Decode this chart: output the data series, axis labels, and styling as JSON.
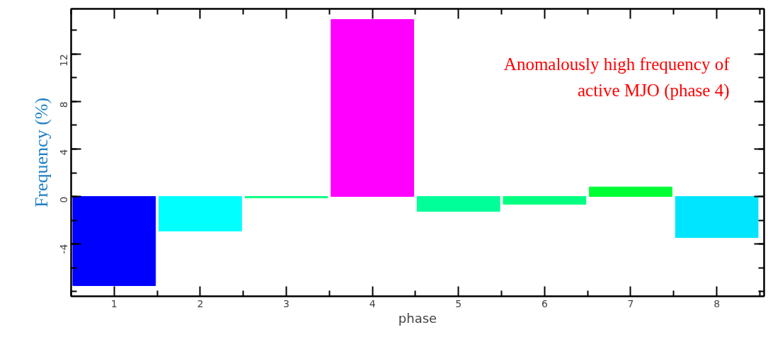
{
  "chart_data": {
    "type": "bar",
    "xlabel": "phase",
    "ylabel": "Frequency (%)",
    "categories": [
      "1",
      "2",
      "3",
      "4",
      "5",
      "6",
      "7",
      "8"
    ],
    "values": [
      -7.5,
      -2.9,
      -0.1,
      14.9,
      -1.25,
      -0.65,
      0.8,
      -3.45
    ],
    "colors": [
      "#0000ff",
      "#00ffff",
      "#00ff80",
      "#ff00ff",
      "#00ff99",
      "#00ff80",
      "#00ff33",
      "#00e5ff"
    ],
    "ylim": [
      -8.4,
      15.8
    ],
    "yticks": [
      -4,
      0,
      4,
      8,
      12
    ],
    "grid": false,
    "annotations": [
      "Anomalously high frequency of active MJO (phase 4)"
    ]
  }
}
